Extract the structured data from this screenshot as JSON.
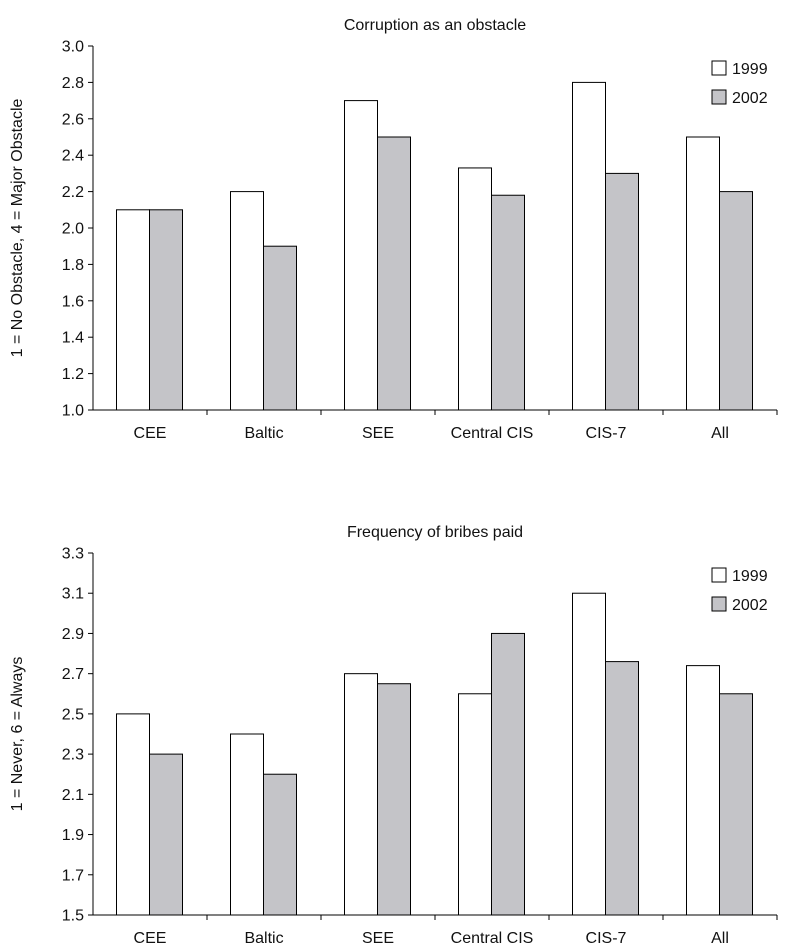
{
  "chart_data": [
    {
      "type": "bar",
      "title": "Corruption as an obstacle",
      "ylabel": "1 = No Obstacle, 4 = Major Obstacle",
      "xlabel": "",
      "ylim": [
        1.0,
        3.0
      ],
      "yticks": [
        "1.0",
        "1.2",
        "1.4",
        "1.6",
        "1.8",
        "2.0",
        "2.2",
        "2.4",
        "2.6",
        "2.8",
        "3.0"
      ],
      "categories": [
        "CEE",
        "Baltic",
        "SEE",
        "Central CIS",
        "CIS-7",
        "All"
      ],
      "series": [
        {
          "name": "1999",
          "color": "#ffffff",
          "values": [
            2.1,
            2.2,
            2.7,
            2.33,
            2.8,
            2.5
          ]
        },
        {
          "name": "2002",
          "color": "#c4c4c8",
          "values": [
            2.1,
            1.9,
            2.5,
            2.18,
            2.3,
            2.2
          ]
        }
      ],
      "legend": "top-right",
      "grid": false
    },
    {
      "type": "bar",
      "title": "Frequency of bribes paid",
      "ylabel": "1 = Never, 6 = Always",
      "xlabel": "",
      "ylim": [
        1.5,
        3.3
      ],
      "yticks": [
        "1.5",
        "1.7",
        "1.9",
        "2.1",
        "2.3",
        "2.5",
        "2.7",
        "2.9",
        "3.1",
        "3.3"
      ],
      "categories": [
        "CEE",
        "Baltic",
        "SEE",
        "Central CIS",
        "CIS-7",
        "All"
      ],
      "series": [
        {
          "name": "1999",
          "color": "#ffffff",
          "values": [
            2.5,
            2.4,
            2.7,
            2.6,
            3.1,
            2.74
          ]
        },
        {
          "name": "2002",
          "color": "#c4c4c8",
          "values": [
            2.3,
            2.2,
            2.65,
            2.9,
            2.76,
            2.6
          ]
        }
      ],
      "legend": "top-right",
      "grid": false
    }
  ]
}
